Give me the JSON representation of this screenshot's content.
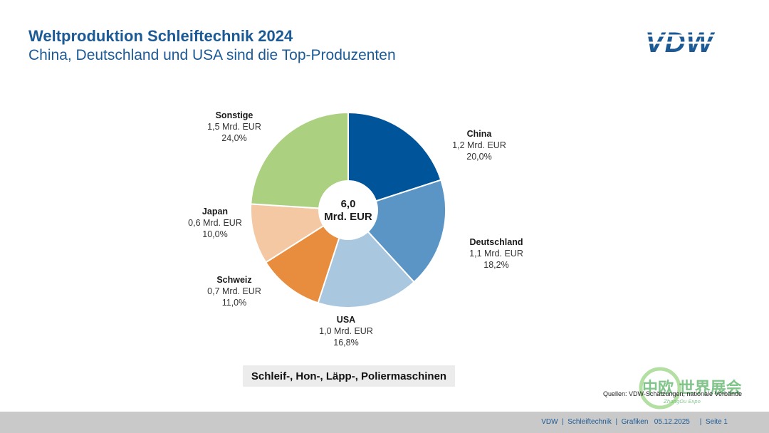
{
  "header": {
    "title": "Weltproduktion Schleiftechnik 2024",
    "subtitle": "China, Deutschland und USA sind die Top-Produzenten"
  },
  "logo": {
    "text": "VDW"
  },
  "chart_data": {
    "type": "pie",
    "variant": "donut",
    "center_label_line1": "6,0",
    "center_label_line2": "Mrd. EUR",
    "total": 6.0,
    "unit": "Mrd. EUR",
    "slices": [
      {
        "name": "China",
        "value": 1.2,
        "percent": 20.0,
        "value_label": "1,2 Mrd. EUR",
        "percent_label": "20,0%",
        "color": "#00549a"
      },
      {
        "name": "Deutschland",
        "value": 1.1,
        "percent": 18.2,
        "value_label": "1,1 Mrd. EUR",
        "percent_label": "18,2%",
        "color": "#5a95c5"
      },
      {
        "name": "USA",
        "value": 1.0,
        "percent": 16.8,
        "value_label": "1,0 Mrd. EUR",
        "percent_label": "16,8%",
        "color": "#aac7e0"
      },
      {
        "name": "Schweiz",
        "value": 0.7,
        "percent": 11.0,
        "value_label": "0,7 Mrd. EUR",
        "percent_label": "11,0%",
        "color": "#e88d3e"
      },
      {
        "name": "Japan",
        "value": 0.6,
        "percent": 10.0,
        "value_label": "0,6 Mrd. EUR",
        "percent_label": "10,0%",
        "color": "#f4c8a2"
      },
      {
        "name": "Sonstige",
        "value": 1.5,
        "percent": 24.0,
        "value_label": "1,5 Mrd. EUR",
        "percent_label": "24,0%",
        "color": "#abd07f"
      }
    ]
  },
  "caption": "Schleif-, Hon-, Läpp-, Poliermaschinen",
  "sources": "Quellen: VDW-Schätzungen, nationale Verbände",
  "watermark": {
    "text": "中欧 世界展会",
    "sub": "ZhongOu Expo"
  },
  "footer": {
    "text": "VDW  |  Schleiftechnik  |  Grafiken   05.12.2025     |  Seite 1"
  }
}
